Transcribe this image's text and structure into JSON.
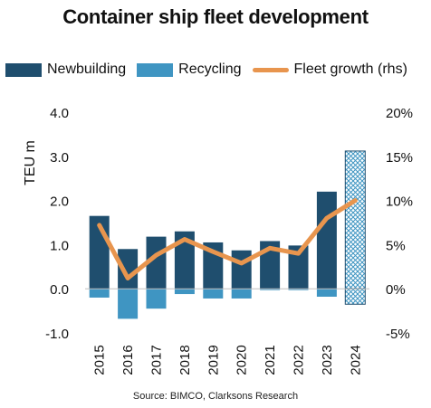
{
  "chart_data": {
    "type": "bar",
    "title": "Container ship fleet development",
    "categories": [
      "2015",
      "2016",
      "2017",
      "2018",
      "2019",
      "2020",
      "2021",
      "2022",
      "2023",
      "2024"
    ],
    "series": [
      {
        "name": "Newbuilding",
        "kind": "bar",
        "axis": "left",
        "color": "#1f4e6e",
        "values": [
          1.65,
          0.9,
          1.18,
          1.3,
          1.05,
          0.87,
          1.08,
          0.98,
          2.2,
          3.12
        ]
      },
      {
        "name": "Recycling",
        "kind": "bar",
        "axis": "left",
        "color": "#3f95c2",
        "values": [
          -0.2,
          -0.68,
          -0.45,
          -0.12,
          -0.22,
          -0.22,
          -0.03,
          -0.03,
          -0.18,
          -0.35
        ]
      },
      {
        "name": "Fleet growth (rhs)",
        "kind": "line",
        "axis": "right",
        "color": "#e8954e",
        "values": [
          7.2,
          1.2,
          3.8,
          5.6,
          4.2,
          2.9,
          4.6,
          4.0,
          8.0,
          10.0
        ]
      }
    ],
    "forecast_categories": [
      "2024"
    ],
    "ylabel": "TEU m",
    "ylim": [
      -1.0,
      4.0
    ],
    "yticks": [
      "-1.0",
      "0.0",
      "1.0",
      "2.0",
      "3.0",
      "4.0"
    ],
    "y2lim": [
      -5,
      20
    ],
    "y2ticks": [
      "-5%",
      "0%",
      "5%",
      "10%",
      "15%",
      "20%"
    ],
    "legend_position": "top",
    "grid": false
  },
  "source": "Source: BIMCO, Clarksons Research"
}
